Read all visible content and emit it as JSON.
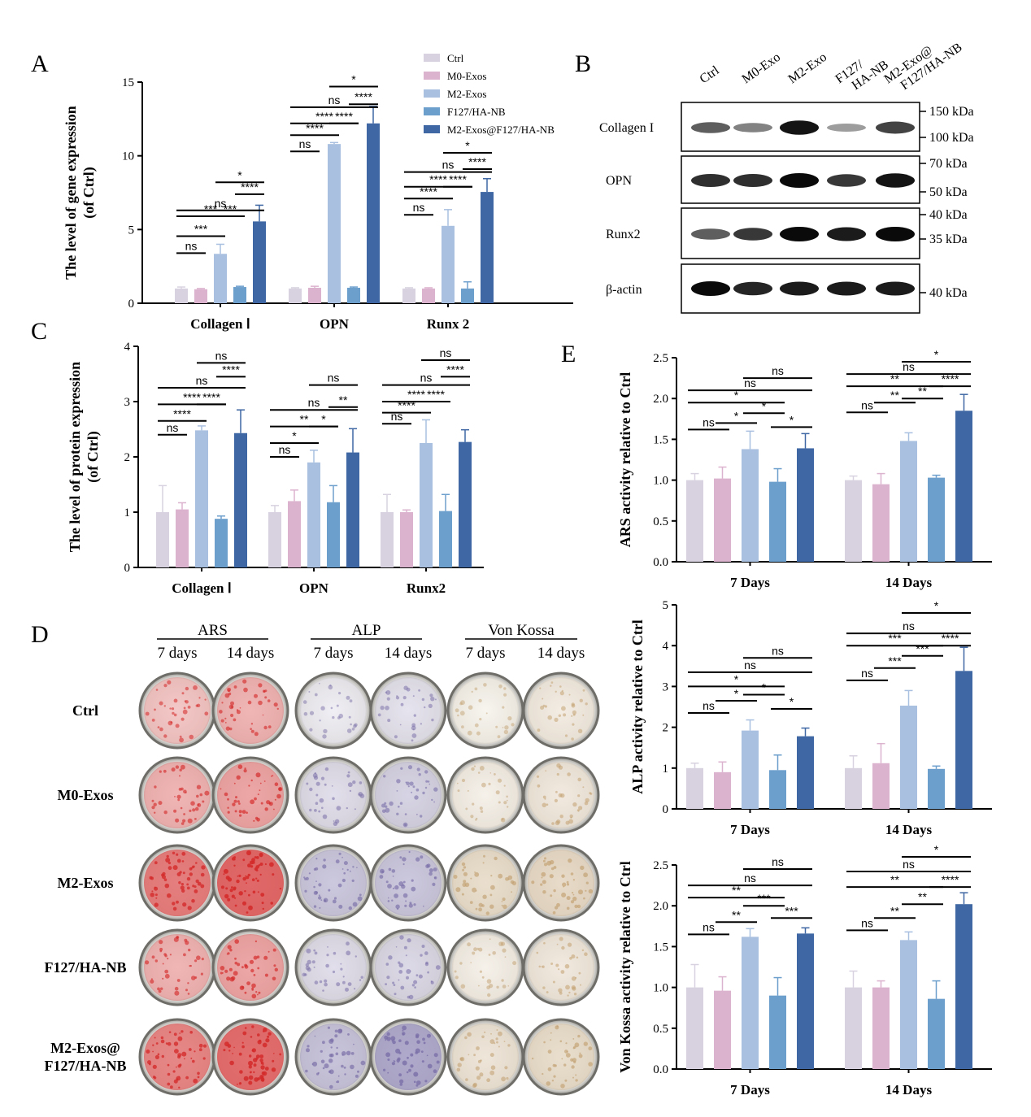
{
  "panel_labels": {
    "a": "A",
    "b": "B",
    "c": "C",
    "d": "D",
    "e": "E"
  },
  "groups": [
    "Ctrl",
    "M0-Exos",
    "M2-Exos",
    "F127/HA-NB",
    "M2-Exos@F127/HA-NB"
  ],
  "colors": [
    "#d8d2e0",
    "#dcb3cf",
    "#a9c0e0",
    "#6d9fcc",
    "#3f67a3"
  ],
  "blot": {
    "lane_labels": [
      "Ctrl",
      "M0-Exo",
      "M2-Exo",
      "F127/\nHA-NB",
      "M2-Exo@\nF127/HA-NB"
    ],
    "rows": [
      {
        "name": "Collagen I",
        "markers": [
          "150 kDa",
          "100 kDa"
        ],
        "intensity": [
          0.55,
          0.35,
          0.95,
          0.2,
          0.7
        ]
      },
      {
        "name": "OPN",
        "markers": [
          "70 kDa",
          "50 kDa"
        ],
        "intensity": [
          0.8,
          0.8,
          1.0,
          0.75,
          0.95
        ]
      },
      {
        "name": "Runx2",
        "markers": [
          "40 kDa",
          "35 kDa"
        ],
        "intensity": [
          0.55,
          0.75,
          1.0,
          0.9,
          1.0
        ]
      },
      {
        "name": "β-actin",
        "markers": [
          "40 kDa"
        ],
        "intensity": [
          1.0,
          0.85,
          0.9,
          0.9,
          0.9
        ]
      }
    ]
  },
  "staining": {
    "stains": [
      "ARS",
      "ALP",
      "Von Kossa"
    ],
    "days": [
      "7 days",
      "14 days"
    ],
    "rows": [
      "Ctrl",
      "M0-Exos",
      "M2-Exos",
      "F127/HA-NB",
      "M2-Exos@\nF127/HA-NB"
    ],
    "stain_colors": [
      "#d42a2a",
      "#7a6fa8",
      "#c2a070"
    ],
    "stain_strength": [
      [
        0.35,
        0.45,
        0.15,
        0.25,
        0.15,
        0.25
      ],
      [
        0.45,
        0.55,
        0.3,
        0.4,
        0.2,
        0.3
      ],
      [
        0.8,
        0.95,
        0.5,
        0.5,
        0.45,
        0.5
      ],
      [
        0.45,
        0.55,
        0.3,
        0.35,
        0.2,
        0.3
      ],
      [
        0.75,
        0.9,
        0.55,
        0.8,
        0.35,
        0.45
      ]
    ]
  },
  "chart_data": [
    {
      "id": "A",
      "type": "bar",
      "ylabel": "The level of gene expression\n(of Ctrl)",
      "categories": [
        "Collagen Ⅰ",
        "OPN",
        "Runx 2"
      ],
      "ylim": [
        0,
        15
      ],
      "yticks": [
        "0",
        "5",
        "10",
        "15"
      ],
      "legend": "top-right",
      "series": [
        {
          "name": "Ctrl",
          "values": [
            1.0,
            1.0,
            1.0
          ],
          "err": [
            0.1,
            0.05,
            0.05
          ]
        },
        {
          "name": "M0-Exos",
          "values": [
            0.95,
            1.05,
            1.0
          ],
          "err": [
            0.05,
            0.1,
            0.05
          ]
        },
        {
          "name": "M2-Exos",
          "values": [
            3.35,
            10.8,
            5.25
          ],
          "err": [
            0.65,
            0.1,
            1.1
          ]
        },
        {
          "name": "F127/HA-NB",
          "values": [
            1.1,
            1.05,
            1.0
          ],
          "err": [
            0.05,
            0.05,
            0.45
          ]
        },
        {
          "name": "M2-Exos@F127/HA-NB",
          "values": [
            5.55,
            12.2,
            7.55
          ],
          "err": [
            1.1,
            1.15,
            0.9
          ]
        }
      ],
      "sig": [
        [
          [
            0,
            1,
            "ns",
            3.4
          ],
          [
            0,
            2,
            "***",
            4.55
          ],
          [
            2,
            4,
            "*",
            8.2
          ],
          [
            3,
            4,
            "****",
            7.4
          ],
          [
            0,
            3,
            "***",
            5.9
          ],
          [
            2,
            3,
            "***",
            5.9
          ],
          [
            0,
            4,
            "ns",
            6.3
          ]
        ],
        [
          [
            0,
            1,
            "ns",
            10.3
          ],
          [
            0,
            2,
            "****",
            11.4
          ],
          [
            0,
            3,
            "****",
            12.2
          ],
          [
            2,
            3,
            "****",
            12.2
          ],
          [
            0,
            4,
            "ns",
            13.3
          ],
          [
            3,
            4,
            "****",
            13.5
          ],
          [
            2,
            4,
            "*",
            14.7
          ]
        ],
        [
          [
            0,
            1,
            "ns",
            6.0
          ],
          [
            0,
            2,
            "****",
            7.1
          ],
          [
            0,
            3,
            "****",
            7.9
          ],
          [
            2,
            3,
            "****",
            7.9
          ],
          [
            0,
            4,
            "ns",
            8.9
          ],
          [
            3,
            4,
            "****",
            9.1
          ],
          [
            2,
            4,
            "*",
            10.2
          ]
        ]
      ]
    },
    {
      "id": "C",
      "type": "bar",
      "ylabel": "The level of protein expression\n(of Ctrl)",
      "categories": [
        "Collagen Ⅰ",
        "OPN",
        "Runx2"
      ],
      "ylim": [
        0,
        4
      ],
      "yticks": [
        "0",
        "1",
        "2",
        "3",
        "4"
      ],
      "series": [
        {
          "name": "Ctrl",
          "values": [
            1.0,
            1.0,
            1.0
          ],
          "err": [
            0.48,
            0.12,
            0.32
          ]
        },
        {
          "name": "M0-Exos",
          "values": [
            1.05,
            1.2,
            1.0
          ],
          "err": [
            0.12,
            0.2,
            0.04
          ]
        },
        {
          "name": "M2-Exos",
          "values": [
            2.48,
            1.9,
            2.25
          ],
          "err": [
            0.08,
            0.22,
            0.42
          ]
        },
        {
          "name": "F127/HA-NB",
          "values": [
            0.88,
            1.18,
            1.02
          ],
          "err": [
            0.05,
            0.3,
            0.3
          ]
        },
        {
          "name": "M2-Exos@F127/HA-NB",
          "values": [
            2.43,
            2.08,
            2.27
          ],
          "err": [
            0.42,
            0.43,
            0.22
          ]
        }
      ],
      "sig": [
        [
          [
            0,
            1,
            "ns",
            2.4
          ],
          [
            0,
            2,
            "****",
            2.65
          ],
          [
            0,
            3,
            "****",
            2.95
          ],
          [
            2,
            3,
            "****",
            2.95
          ],
          [
            0,
            4,
            "ns",
            3.25
          ],
          [
            3,
            4,
            "****",
            3.45
          ],
          [
            2,
            4,
            "ns",
            3.7
          ]
        ],
        [
          [
            0,
            1,
            "ns",
            2.0
          ],
          [
            0,
            2,
            "*",
            2.25
          ],
          [
            0,
            3,
            "**",
            2.55
          ],
          [
            2,
            3,
            "*",
            2.55
          ],
          [
            0,
            4,
            "ns",
            2.85
          ],
          [
            3,
            4,
            "**",
            2.9
          ],
          [
            2,
            4,
            "ns",
            3.3
          ]
        ],
        [
          [
            0,
            1,
            "ns",
            2.6
          ],
          [
            0,
            2,
            "****",
            2.8
          ],
          [
            0,
            3,
            "****",
            3.0
          ],
          [
            2,
            3,
            "****",
            3.0
          ],
          [
            0,
            4,
            "ns",
            3.3
          ],
          [
            3,
            4,
            "****",
            3.45
          ],
          [
            2,
            4,
            "ns",
            3.75
          ]
        ]
      ]
    },
    {
      "id": "E1",
      "type": "bar",
      "ylabel": "ARS activity relative to Ctrl",
      "categories": [
        "7 Days",
        "14 Days"
      ],
      "ylim": [
        0,
        2.5
      ],
      "yticks": [
        "0.0",
        "0.5",
        "1.0",
        "1.5",
        "2.0",
        "2.5"
      ],
      "series": [
        {
          "name": "Ctrl",
          "values": [
            1.0,
            1.0
          ],
          "err": [
            0.08,
            0.05
          ]
        },
        {
          "name": "M0-Exos",
          "values": [
            1.02,
            0.95
          ],
          "err": [
            0.14,
            0.13
          ]
        },
        {
          "name": "M2-Exos",
          "values": [
            1.38,
            1.48
          ],
          "err": [
            0.22,
            0.1
          ]
        },
        {
          "name": "F127/HA-NB",
          "values": [
            0.98,
            1.03
          ],
          "err": [
            0.16,
            0.03
          ]
        },
        {
          "name": "M2-Exos@F127/HA-NB",
          "values": [
            1.39,
            1.85
          ],
          "err": [
            0.18,
            0.2
          ]
        }
      ],
      "sig": [
        [
          [
            0,
            1,
            "ns",
            1.62
          ],
          [
            1,
            2,
            "*",
            1.7
          ],
          [
            3,
            4,
            "*",
            1.65
          ],
          [
            2,
            3,
            "*",
            1.82
          ],
          [
            0,
            3,
            "*",
            1.95
          ],
          [
            0,
            4,
            "ns",
            2.1
          ],
          [
            2,
            4,
            "ns",
            2.25
          ]
        ],
        [
          [
            0,
            1,
            "ns",
            1.83
          ],
          [
            1,
            2,
            "**",
            1.95
          ],
          [
            2,
            3,
            "**",
            2.0
          ],
          [
            0,
            3,
            "**",
            2.15
          ],
          [
            3,
            4,
            "****",
            2.15
          ],
          [
            0,
            4,
            "ns",
            2.3
          ],
          [
            2,
            4,
            "*",
            2.45
          ]
        ]
      ]
    },
    {
      "id": "E2",
      "type": "bar",
      "ylabel": "ALP activity relative to Ctrl",
      "categories": [
        "7 Days",
        "14 Days"
      ],
      "ylim": [
        0,
        5
      ],
      "yticks": [
        "0",
        "1",
        "2",
        "3",
        "4",
        "5"
      ],
      "series": [
        {
          "name": "Ctrl",
          "values": [
            1.0,
            1.0
          ],
          "err": [
            0.12,
            0.3
          ]
        },
        {
          "name": "M0-Exos",
          "values": [
            0.9,
            1.12
          ],
          "err": [
            0.25,
            0.48
          ]
        },
        {
          "name": "M2-Exos",
          "values": [
            1.92,
            2.53
          ],
          "err": [
            0.26,
            0.37
          ]
        },
        {
          "name": "F127/HA-NB",
          "values": [
            0.95,
            0.98
          ],
          "err": [
            0.37,
            0.07
          ]
        },
        {
          "name": "M2-Exos@F127/HA-NB",
          "values": [
            1.78,
            3.38
          ],
          "err": [
            0.2,
            0.58
          ]
        }
      ],
      "sig": [
        [
          [
            0,
            1,
            "ns",
            2.35
          ],
          [
            1,
            2,
            "*",
            2.65
          ],
          [
            3,
            4,
            "*",
            2.45
          ],
          [
            2,
            3,
            "*",
            2.8
          ],
          [
            0,
            3,
            "*",
            3.0
          ],
          [
            0,
            4,
            "ns",
            3.35
          ],
          [
            2,
            4,
            "ns",
            3.7
          ]
        ],
        [
          [
            0,
            1,
            "ns",
            3.15
          ],
          [
            1,
            2,
            "***",
            3.45
          ],
          [
            2,
            3,
            "***",
            3.75
          ],
          [
            0,
            3,
            "***",
            4.0
          ],
          [
            3,
            4,
            "****",
            4.0
          ],
          [
            0,
            4,
            "ns",
            4.3
          ],
          [
            2,
            4,
            "*",
            4.8
          ]
        ]
      ]
    },
    {
      "id": "E3",
      "type": "bar",
      "ylabel": "Von Kossa activity relative to Ctrl",
      "categories": [
        "7 Days",
        "14 Days"
      ],
      "ylim": [
        0,
        2.5
      ],
      "yticks": [
        "0.0",
        "0.5",
        "1.0",
        "1.5",
        "2.0",
        "2.5"
      ],
      "series": [
        {
          "name": "Ctrl",
          "values": [
            1.0,
            1.0
          ],
          "err": [
            0.28,
            0.2
          ]
        },
        {
          "name": "M0-Exos",
          "values": [
            0.96,
            1.0
          ],
          "err": [
            0.17,
            0.08
          ]
        },
        {
          "name": "M2-Exos",
          "values": [
            1.62,
            1.58
          ],
          "err": [
            0.1,
            0.1
          ]
        },
        {
          "name": "F127/HA-NB",
          "values": [
            0.9,
            0.86
          ],
          "err": [
            0.22,
            0.22
          ]
        },
        {
          "name": "M2-Exos@F127/HA-NB",
          "values": [
            1.66,
            2.02
          ],
          "err": [
            0.07,
            0.14
          ]
        }
      ],
      "sig": [
        [
          [
            0,
            1,
            "ns",
            1.65
          ],
          [
            1,
            2,
            "**",
            1.8
          ],
          [
            3,
            4,
            "***",
            1.85
          ],
          [
            2,
            3,
            "***",
            2.0
          ],
          [
            0,
            3,
            "**",
            2.1
          ],
          [
            0,
            4,
            "ns",
            2.25
          ],
          [
            2,
            4,
            "ns",
            2.45
          ]
        ],
        [
          [
            0,
            1,
            "ns",
            1.7
          ],
          [
            1,
            2,
            "**",
            1.85
          ],
          [
            2,
            3,
            "**",
            2.02
          ],
          [
            0,
            3,
            "**",
            2.23
          ],
          [
            3,
            4,
            "****",
            2.23
          ],
          [
            0,
            4,
            "ns",
            2.42
          ],
          [
            2,
            4,
            "*",
            2.6
          ]
        ]
      ]
    }
  ]
}
